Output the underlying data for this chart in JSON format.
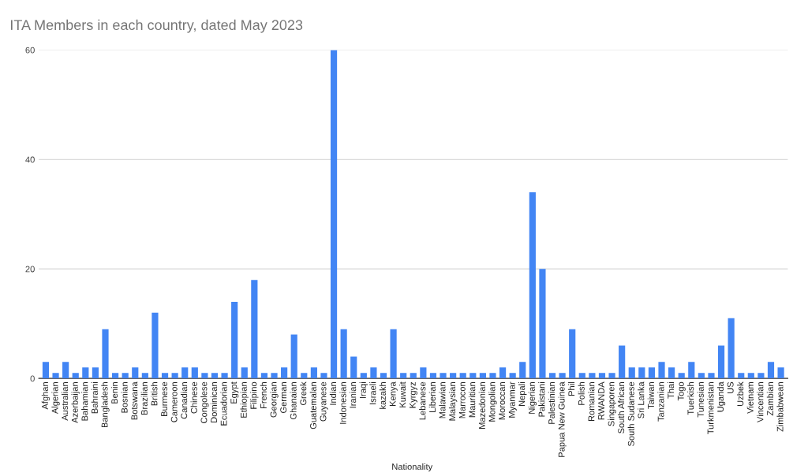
{
  "chart_data": {
    "type": "bar",
    "title": "ITA Members in each country, dated May 2023",
    "xlabel": "Nationality",
    "categories": [
      "Afghan",
      "Algerian",
      "Australian",
      "Azerbaijan",
      "Bahamian",
      "Bahraini",
      "Bangladesh",
      "Benin",
      "Bosnian",
      "Botswana",
      "Brazilian",
      "British",
      "Burmese",
      "Cameroon",
      "Canadian",
      "Chinese",
      "Congolese",
      "Dominican",
      "Ecuadorian",
      "Egypt",
      "Ethiopian",
      "Filipino",
      "French",
      "Georgian",
      "German",
      "Ghanaian",
      "Greek",
      "Guatemalan",
      "Guyanese",
      "Indian",
      "Indonesian",
      "Iranian",
      "Iraqi",
      "Israeli",
      "kazakh",
      "Kenya",
      "Kuwait",
      "Kyrgyz",
      "Lebanese",
      "Liberian",
      "Malawian",
      "Malaysian",
      "Marrocon",
      "Mauritian",
      "Mazedonian",
      "Mongolian",
      "Moroccan",
      "Myanmar",
      "Nepali",
      "Nigerian",
      "Pakistani",
      "Palestinian",
      "Papua New Guinea",
      "Phil",
      "Polish",
      "Romanian",
      "RWANDA",
      "Singaporen",
      "South African",
      "South Sudanese",
      "Sri Lanka",
      "Taiwan",
      "Tanzanian",
      "Thai",
      "Togo",
      "Tuerkish",
      "Tunesian",
      "Turkmenistan",
      "Uganda",
      "US",
      "Uzbek",
      "Vietnam",
      "Vincentian",
      "Zambian",
      "Zimbabwean"
    ],
    "values": [
      3,
      1,
      3,
      1,
      2,
      2,
      9,
      1,
      1,
      2,
      1,
      12,
      1,
      1,
      2,
      2,
      1,
      1,
      1,
      14,
      2,
      18,
      1,
      1,
      2,
      8,
      1,
      2,
      1,
      60,
      9,
      4,
      1,
      2,
      1,
      9,
      1,
      1,
      2,
      1,
      1,
      1,
      1,
      1,
      1,
      1,
      2,
      1,
      3,
      34,
      20,
      1,
      1,
      9,
      1,
      1,
      1,
      1,
      6,
      2,
      2,
      2,
      3,
      2,
      1,
      3,
      1,
      1,
      6,
      11,
      1,
      1,
      1,
      3,
      2
    ],
    "color": "#4285f4",
    "ylim": [
      0,
      60
    ],
    "yticks": [
      0,
      20,
      40,
      60
    ],
    "grid": "y"
  }
}
